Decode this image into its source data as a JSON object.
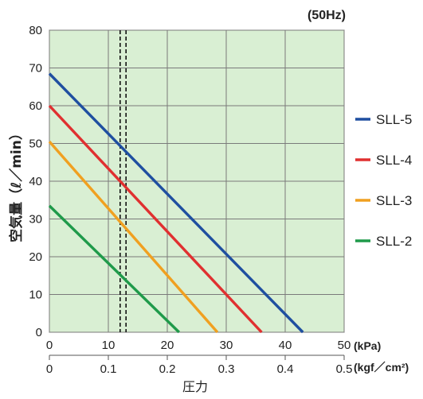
{
  "chart_data": {
    "type": "line",
    "title": "",
    "frequency_label": "(50Hz)",
    "ylabel": "空気量（ℓ／min）",
    "xlabel": "圧力",
    "x_unit_primary": "(kPa)",
    "x_unit_secondary": "(kgf／cm²)",
    "xlim": [
      0,
      50
    ],
    "ylim": [
      0,
      80
    ],
    "y_ticks": [
      "0",
      "10",
      "20",
      "30",
      "40",
      "50",
      "60",
      "70",
      "80"
    ],
    "x_ticks_primary": [
      "0",
      "10",
      "20",
      "30",
      "40",
      "50"
    ],
    "x_ticks_secondary": [
      "0",
      "0.1",
      "0.2",
      "0.3",
      "0.4",
      "0.5"
    ],
    "grid": true,
    "legend_position": "right",
    "reference_lines_x": [
      12,
      13
    ],
    "series": [
      {
        "name": "SLL-5",
        "color": "#1f4fa0",
        "x": [
          0,
          43
        ],
        "y": [
          68.5,
          0
        ]
      },
      {
        "name": "SLL-4",
        "color": "#e03030",
        "x": [
          0,
          36
        ],
        "y": [
          60,
          0
        ]
      },
      {
        "name": "SLL-3",
        "color": "#f0a020",
        "x": [
          0,
          28.5
        ],
        "y": [
          50.5,
          0
        ]
      },
      {
        "name": "SLL-2",
        "color": "#1f9a4a",
        "x": [
          0,
          22
        ],
        "y": [
          33.5,
          0
        ]
      }
    ],
    "background_color": "#d9efd3",
    "grid_color": "#7a7a7a"
  }
}
